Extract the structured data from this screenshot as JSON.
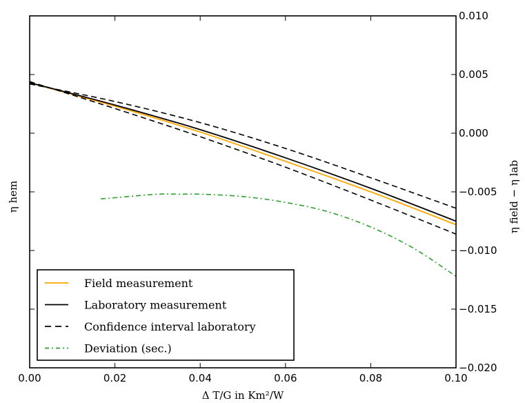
{
  "chart_data": {
    "type": "line",
    "title": "",
    "xlabel": "Δ T/G in Km²/W",
    "ylabel_left": "η hem",
    "ylabel_right": "η field − η lab",
    "xlim": [
      0.0,
      0.1
    ],
    "ylim_right": [
      -0.02,
      0.01
    ],
    "x_ticks": [
      "0.00",
      "0.02",
      "0.04",
      "0.06",
      "0.08",
      "0.10"
    ],
    "y_right_ticks": [
      "−0.020",
      "−0.015",
      "−0.010",
      "−0.005",
      "0.000",
      "0.005",
      "0.010"
    ],
    "left_axis_ticks_labeled": false,
    "grid": false,
    "legend_position": "lower-left",
    "series": [
      {
        "name": "Field measurement",
        "axis": "left",
        "color": "#ffa500",
        "style": "solid",
        "x": [
          0.0,
          0.02,
          0.04,
          0.06,
          0.08,
          0.1
        ],
        "y": [
          0.0043,
          0.0023,
          0.0001,
          -0.0024,
          -0.005,
          -0.0078
        ]
      },
      {
        "name": "Laboratory measurement",
        "axis": "left",
        "color": "#000000",
        "style": "solid",
        "x": [
          0.0,
          0.02,
          0.04,
          0.06,
          0.08,
          0.1
        ],
        "y": [
          0.0043,
          0.0024,
          0.0003,
          -0.0021,
          -0.0047,
          -0.0075
        ]
      },
      {
        "name": "Confidence interval laboratory",
        "axis": "left",
        "color": "#000000",
        "style": "dashed",
        "x": [
          0.0,
          0.02,
          0.04,
          0.06,
          0.08,
          0.1
        ],
        "y": [
          0.0042,
          0.0027,
          0.0009,
          -0.0013,
          -0.0038,
          -0.0064
        ]
      },
      {
        "name": "",
        "axis": "left",
        "color": "#000000",
        "style": "dashed",
        "x": [
          0.0,
          0.02,
          0.04,
          0.06,
          0.08,
          0.1
        ],
        "y": [
          0.0044,
          0.0021,
          -0.0003,
          -0.0029,
          -0.0057,
          -0.0086
        ]
      },
      {
        "name": "Deviation (sec.)",
        "axis": "right",
        "color": "#2ca02c",
        "style": "dashdot",
        "x": [
          0.0167,
          0.02,
          0.03,
          0.035,
          0.04,
          0.05,
          0.06,
          0.07,
          0.08,
          0.09,
          0.1
        ],
        "y": [
          -0.0056,
          -0.0055,
          -0.0052,
          -0.0052,
          -0.0052,
          -0.0054,
          -0.0059,
          -0.0067,
          -0.008,
          -0.0098,
          -0.0122
        ]
      }
    ]
  },
  "legend": {
    "items": [
      {
        "label": "Field measurement",
        "color": "#ffa500",
        "style": "solid"
      },
      {
        "label": "Laboratory measurement",
        "color": "#000000",
        "style": "solid"
      },
      {
        "label": "Confidence interval laboratory",
        "color": "#000000",
        "style": "dashed"
      },
      {
        "label": "Deviation (sec.)",
        "color": "#2ca02c",
        "style": "dashdot"
      }
    ]
  }
}
